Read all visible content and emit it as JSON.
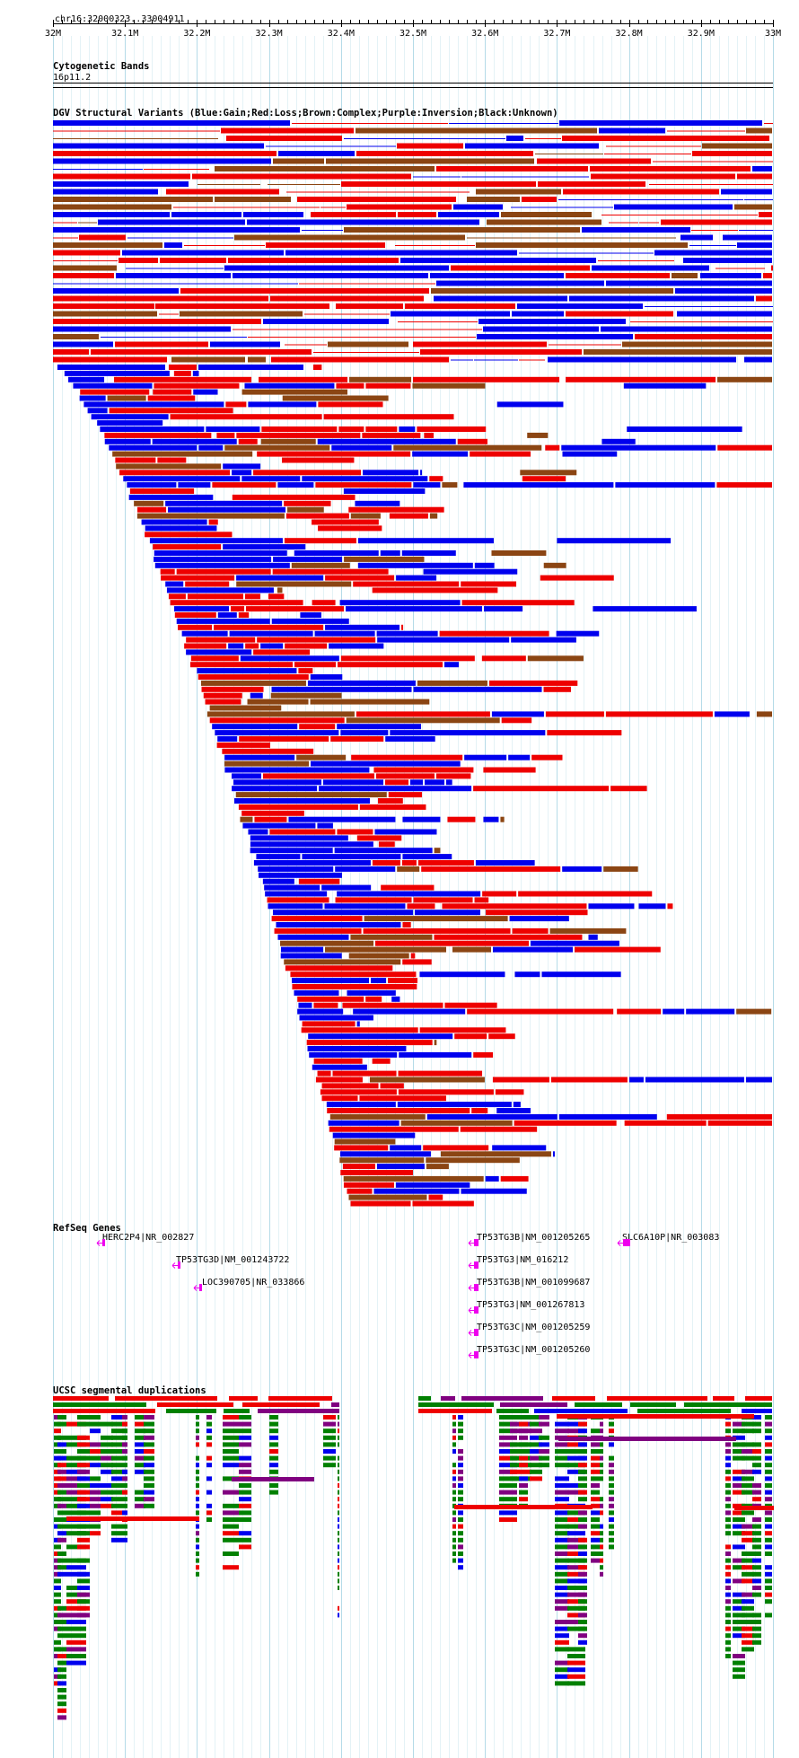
{
  "view": {
    "location_label": "chr16:32000323..33004911",
    "scale_ticks": [
      "32M",
      "32.1M",
      "32.2M",
      "32.3M",
      "32.4M",
      "32.5M",
      "32.6M",
      "32.7M",
      "32.8M",
      "32.9M",
      "33M"
    ]
  },
  "tracks": {
    "cytoband": {
      "title": "Cytogenetic Bands",
      "band_label": "16p11.2"
    },
    "dgv": {
      "title": "DGV Structural Variants (Blue:Gain;Red:Loss;Brown:Complex;Purple:Inversion;Black:Unknown)"
    },
    "refseq": {
      "title": "RefSeq Genes",
      "genes": [
        "HERC2P4|NR_002827",
        "TP53TG3D|NM_001243722",
        "LOC390705|NR_033866",
        "TP53TG3B|NM_001205265",
        "TP53TG3|NM_016212",
        "TP53TG3B|NM_001099687",
        "TP53TG3|NM_001267813",
        "TP53TG3C|NM_001205259",
        "TP53TG3C|NM_001205260",
        "SLC6A10P|NR_003083"
      ]
    },
    "segdups": {
      "title": "UCSC segmental duplications"
    }
  },
  "colors": {
    "gain": "#0000ee",
    "loss": "#ee0000",
    "complex": "#8b4513",
    "inversion": "#800080",
    "unknown": "#000000",
    "gene": "#ee00ee",
    "segdup_green": "#008000",
    "segdup_red": "#ee0000",
    "segdup_blue": "#0000ee",
    "segdup_purple": "#800080",
    "gridline": "#add8e6"
  }
}
